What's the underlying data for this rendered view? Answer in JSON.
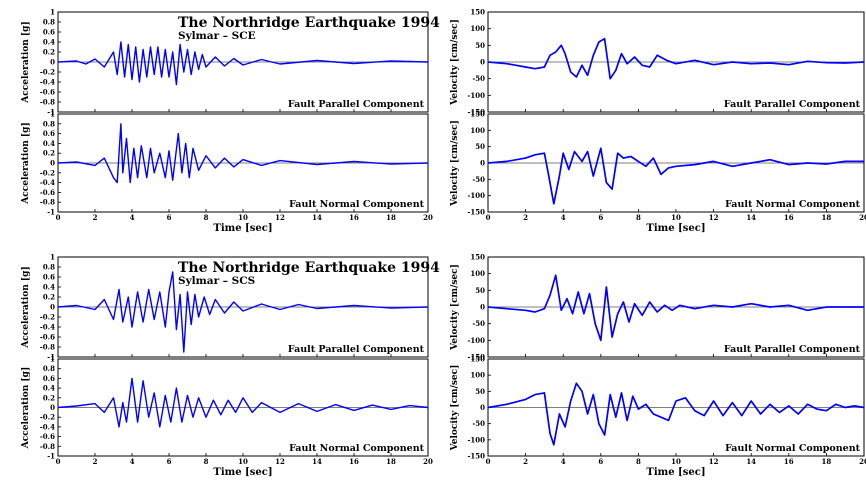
{
  "groups": [
    {
      "title": "The Northridge Earthquake 1994",
      "subtitle": "Sylmar – SCE"
    },
    {
      "title": "The Northridge Earthquake 1994",
      "subtitle": "Sylmar – SCS"
    }
  ],
  "x_axis": {
    "label": "Time [sec]",
    "ticks": [
      "0",
      "2",
      "4",
      "6",
      "8",
      "10",
      "12",
      "14",
      "16",
      "18",
      "20"
    ],
    "lim": [
      0,
      20
    ]
  },
  "acc_axis": {
    "label": "Acceleration [g]",
    "ticks": [
      "1",
      "0.8",
      "0.6",
      "0.4",
      "0.2",
      "0",
      "-0.2",
      "-0.4",
      "-0.6",
      "-0.8",
      "-1"
    ],
    "lim": [
      -1,
      1
    ]
  },
  "vel_axis": {
    "label": "Velocity [cm/sec]",
    "ticks": [
      "150",
      "100",
      "50",
      "0",
      "-50",
      "-100",
      "-150"
    ],
    "lim": [
      -150,
      150
    ]
  },
  "components": {
    "parallel": "Fault Parallel Component",
    "normal": "Fault Normal Component"
  },
  "colors": {
    "trace": "#0000ff",
    "axis": "#000000",
    "background": "#ffffff"
  },
  "chart_data": [
    {
      "type": "line",
      "station": "SCE",
      "quantity": "acceleration",
      "component": "Fault Parallel Component",
      "xlim": [
        0,
        20
      ],
      "ylim": [
        -1,
        1
      ],
      "x": [
        0,
        1,
        1.5,
        2,
        2.5,
        3,
        3.2,
        3.4,
        3.6,
        3.8,
        4,
        4.2,
        4.4,
        4.6,
        4.8,
        5,
        5.2,
        5.4,
        5.6,
        5.8,
        6,
        6.2,
        6.4,
        6.6,
        6.8,
        7,
        7.2,
        7.4,
        7.6,
        7.8,
        8,
        8.5,
        9,
        9.5,
        10,
        11,
        12,
        14,
        16,
        18,
        20
      ],
      "y": [
        0,
        0.02,
        -0.04,
        0.06,
        -0.1,
        0.2,
        -0.25,
        0.4,
        -0.3,
        0.35,
        -0.35,
        0.3,
        -0.4,
        0.25,
        -0.3,
        0.3,
        -0.25,
        0.3,
        -0.3,
        0.25,
        -0.3,
        0.2,
        -0.45,
        0.35,
        -0.2,
        0.25,
        -0.25,
        0.2,
        -0.15,
        0.15,
        -0.1,
        0.1,
        -0.08,
        0.07,
        -0.06,
        0.05,
        -0.04,
        0.03,
        -0.03,
        0.02,
        0
      ]
    },
    {
      "type": "line",
      "station": "SCE",
      "quantity": "acceleration",
      "component": "Fault Normal Component",
      "xlim": [
        0,
        20
      ],
      "ylim": [
        -1,
        1
      ],
      "x": [
        0,
        1,
        2,
        2.5,
        3,
        3.2,
        3.4,
        3.5,
        3.7,
        3.9,
        4.1,
        4.3,
        4.5,
        4.8,
        5,
        5.2,
        5.5,
        5.8,
        6,
        6.2,
        6.5,
        6.7,
        6.9,
        7.1,
        7.3,
        7.6,
        8,
        8.5,
        9,
        9.5,
        10,
        11,
        12,
        14,
        16,
        18,
        20
      ],
      "y": [
        0,
        0.02,
        -0.05,
        0.1,
        -0.3,
        -0.4,
        0.8,
        -0.2,
        0.5,
        -0.4,
        0.3,
        -0.3,
        0.35,
        -0.3,
        0.3,
        -0.2,
        0.2,
        -0.3,
        0.25,
        -0.35,
        0.6,
        -0.2,
        0.4,
        -0.3,
        0.3,
        -0.15,
        0.15,
        -0.1,
        0.1,
        -0.08,
        0.07,
        -0.05,
        0.05,
        -0.03,
        0.03,
        -0.02,
        0
      ]
    },
    {
      "type": "line",
      "station": "SCE",
      "quantity": "velocity",
      "component": "Fault Parallel Component",
      "xlim": [
        0,
        20
      ],
      "ylim": [
        -150,
        150
      ],
      "x": [
        0,
        1,
        1.5,
        2,
        2.5,
        3,
        3.3,
        3.6,
        3.9,
        4.1,
        4.4,
        4.7,
        5,
        5.3,
        5.6,
        5.9,
        6.2,
        6.5,
        6.8,
        7.1,
        7.4,
        7.8,
        8.2,
        8.6,
        9,
        9.5,
        10,
        11,
        12,
        13,
        14,
        15,
        16,
        17,
        18,
        19,
        20
      ],
      "y": [
        0,
        -5,
        -10,
        -15,
        -20,
        -15,
        20,
        30,
        50,
        25,
        -30,
        -45,
        -10,
        -40,
        20,
        60,
        70,
        -50,
        -25,
        25,
        -5,
        15,
        -10,
        -15,
        20,
        5,
        -5,
        5,
        -8,
        0,
        -5,
        -3,
        -8,
        2,
        -2,
        -3,
        0
      ]
    },
    {
      "type": "line",
      "station": "SCE",
      "quantity": "velocity",
      "component": "Fault Normal Component",
      "xlim": [
        0,
        20
      ],
      "ylim": [
        -150,
        150
      ],
      "x": [
        0,
        1,
        2,
        2.5,
        3,
        3.2,
        3.5,
        3.8,
        4,
        4.3,
        4.6,
        5,
        5.3,
        5.6,
        6,
        6.3,
        6.6,
        6.9,
        7.2,
        7.6,
        8,
        8.4,
        8.8,
        9.2,
        9.6,
        10,
        11,
        12,
        13,
        14,
        15,
        16,
        17,
        18,
        19,
        20
      ],
      "y": [
        0,
        5,
        15,
        25,
        30,
        -30,
        -125,
        -40,
        30,
        -20,
        35,
        5,
        35,
        -40,
        45,
        -60,
        -80,
        30,
        15,
        20,
        5,
        -10,
        15,
        -35,
        -15,
        -10,
        -5,
        5,
        -10,
        0,
        10,
        -5,
        0,
        -3,
        5,
        5
      ]
    },
    {
      "type": "line",
      "station": "SCS",
      "quantity": "acceleration",
      "component": "Fault Parallel Component",
      "xlim": [
        0,
        20
      ],
      "ylim": [
        -1,
        1
      ],
      "x": [
        0,
        1,
        2,
        2.5,
        3,
        3.3,
        3.5,
        3.8,
        4,
        4.3,
        4.6,
        4.9,
        5.2,
        5.5,
        5.8,
        6,
        6.2,
        6.4,
        6.6,
        6.8,
        7,
        7.2,
        7.4,
        7.6,
        7.9,
        8.2,
        8.5,
        9,
        9.5,
        10,
        11,
        12,
        13,
        14,
        16,
        18,
        20
      ],
      "y": [
        0,
        0.03,
        -0.05,
        0.15,
        -0.25,
        0.35,
        -0.3,
        0.2,
        -0.4,
        0.3,
        -0.3,
        0.35,
        -0.25,
        0.3,
        -0.4,
        0.3,
        0.7,
        -0.45,
        0.25,
        -0.9,
        0.3,
        -0.35,
        0.25,
        -0.2,
        0.2,
        -0.15,
        0.15,
        -0.12,
        0.1,
        -0.08,
        0.06,
        -0.05,
        0.05,
        -0.03,
        0.03,
        -0.02,
        0
      ]
    },
    {
      "type": "line",
      "station": "SCS",
      "quantity": "acceleration",
      "component": "Fault Normal Component",
      "xlim": [
        0,
        20
      ],
      "ylim": [
        -1,
        1
      ],
      "x": [
        0,
        1,
        2,
        2.5,
        3,
        3.3,
        3.5,
        3.7,
        4,
        4.3,
        4.6,
        4.9,
        5.2,
        5.5,
        5.8,
        6.1,
        6.4,
        6.7,
        7,
        7.3,
        7.6,
        8,
        8.4,
        8.8,
        9.2,
        9.6,
        10,
        10.5,
        11,
        12,
        13,
        14,
        15,
        16,
        17,
        18,
        19,
        20
      ],
      "y": [
        0,
        0.03,
        0.08,
        -0.1,
        0.2,
        -0.4,
        0.1,
        -0.3,
        0.6,
        -0.3,
        0.55,
        -0.2,
        0.3,
        -0.4,
        0.25,
        -0.3,
        0.4,
        -0.3,
        0.25,
        -0.2,
        0.2,
        -0.2,
        0.15,
        -0.15,
        0.15,
        -0.1,
        0.2,
        -0.1,
        0.1,
        -0.1,
        0.08,
        -0.08,
        0.06,
        -0.06,
        0.05,
        -0.04,
        0.04,
        0
      ]
    },
    {
      "type": "line",
      "station": "SCS",
      "quantity": "velocity",
      "component": "Fault Parallel Component",
      "xlim": [
        0,
        20
      ],
      "ylim": [
        -150,
        150
      ],
      "x": [
        0,
        1,
        2,
        2.5,
        3,
        3.3,
        3.6,
        3.9,
        4.2,
        4.5,
        4.8,
        5.1,
        5.4,
        5.7,
        6,
        6.3,
        6.6,
        6.9,
        7.2,
        7.5,
        7.8,
        8.2,
        8.6,
        9,
        9.4,
        9.8,
        10.2,
        11,
        12,
        13,
        14,
        15,
        16,
        17,
        18,
        19,
        20
      ],
      "y": [
        0,
        -5,
        -10,
        -15,
        -5,
        35,
        95,
        -10,
        25,
        -20,
        45,
        -20,
        40,
        -50,
        -100,
        60,
        -90,
        -20,
        15,
        -45,
        10,
        -25,
        15,
        -15,
        5,
        -10,
        5,
        -5,
        5,
        0,
        10,
        0,
        5,
        -10,
        0,
        0,
        0
      ]
    },
    {
      "type": "line",
      "station": "SCS",
      "quantity": "velocity",
      "component": "Fault Normal Component",
      "xlim": [
        0,
        20
      ],
      "ylim": [
        -150,
        150
      ],
      "x": [
        0,
        1,
        2,
        2.5,
        3,
        3.3,
        3.5,
        3.8,
        4.1,
        4.4,
        4.7,
        5,
        5.3,
        5.6,
        5.9,
        6.2,
        6.5,
        6.8,
        7.1,
        7.4,
        7.7,
        8,
        8.4,
        8.8,
        9.2,
        9.6,
        10,
        10.5,
        11,
        11.5,
        12,
        12.5,
        13,
        13.5,
        14,
        14.5,
        15,
        15.5,
        16,
        16.5,
        17,
        17.5,
        18,
        18.5,
        19,
        19.5,
        20
      ],
      "y": [
        0,
        10,
        25,
        40,
        45,
        -80,
        -115,
        -20,
        -60,
        20,
        75,
        50,
        -20,
        40,
        -50,
        -85,
        40,
        -30,
        45,
        -40,
        35,
        -5,
        10,
        -20,
        -30,
        -40,
        20,
        30,
        -10,
        -25,
        20,
        -25,
        15,
        -25,
        20,
        -20,
        10,
        -15,
        5,
        -20,
        10,
        -5,
        -10,
        10,
        0,
        5,
        0
      ]
    }
  ]
}
